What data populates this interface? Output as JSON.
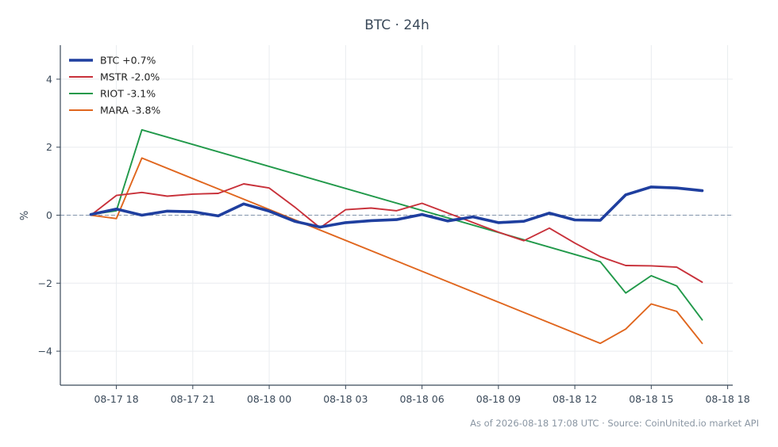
{
  "chart_data": {
    "type": "line",
    "title": "BTC · 24h",
    "xlabel": "",
    "ylabel": "%",
    "x_ticks": [
      "08-17 18",
      "08-17 21",
      "08-18 00",
      "08-18 03",
      "08-18 06",
      "08-18 09",
      "08-18 12",
      "08-18 15",
      "08-18 18"
    ],
    "x_tick_hours": [
      18,
      21,
      24,
      27,
      30,
      33,
      36,
      39,
      42
    ],
    "xlim_hours": [
      15.8,
      42.2
    ],
    "ylim": [
      -5,
      5
    ],
    "y_ticks": [
      -4,
      -2,
      0,
      2,
      4
    ],
    "y_tick_labels": [
      "−4",
      "−2",
      "0",
      "2",
      "4"
    ],
    "grid": true,
    "zero_line": true,
    "legend_position": "top-left",
    "series": [
      {
        "name": "BTC +0.7%",
        "color": "#1f3f9f",
        "width": 3.6,
        "x": [
          17,
          18,
          19,
          20,
          21,
          22,
          23,
          24,
          25,
          26,
          27,
          28,
          29,
          30,
          31,
          32,
          33,
          34,
          35,
          36,
          37,
          38,
          39,
          40,
          41
        ],
        "y": [
          0.02,
          0.18,
          0.0,
          0.12,
          0.1,
          -0.02,
          0.33,
          0.12,
          -0.18,
          -0.35,
          -0.22,
          -0.16,
          -0.13,
          0.02,
          -0.17,
          -0.05,
          -0.22,
          -0.18,
          0.06,
          -0.14,
          -0.15,
          0.6,
          0.83,
          0.8,
          0.72
        ]
      },
      {
        "name": "MSTR -2.0%",
        "color": "#c8313a",
        "width": 1.9,
        "x": [
          17,
          18,
          19,
          20,
          21,
          22,
          23,
          24,
          25,
          26,
          27,
          28,
          29,
          30,
          33,
          34,
          35,
          36,
          37,
          38,
          39,
          40,
          41
        ],
        "y": [
          0.0,
          0.58,
          0.67,
          0.56,
          0.62,
          0.64,
          0.92,
          0.8,
          0.24,
          -0.37,
          0.16,
          0.21,
          0.13,
          0.35,
          -0.5,
          -0.75,
          -0.38,
          -0.82,
          -1.22,
          -1.48,
          -1.49,
          -1.53,
          -1.97
        ]
      },
      {
        "name": "RIOT -3.1%",
        "color": "#21994a",
        "width": 1.9,
        "x": [
          17,
          18,
          19,
          37,
          38,
          39,
          40,
          41
        ],
        "y": [
          0.02,
          0.13,
          2.51,
          -1.37,
          -2.29,
          -1.78,
          -2.08,
          -3.08
        ]
      },
      {
        "name": "MARA -3.8%",
        "color": "#e0661e",
        "width": 1.9,
        "x": [
          17,
          18,
          19,
          37,
          38,
          39,
          40,
          41
        ],
        "y": [
          0.0,
          -0.1,
          1.68,
          -3.77,
          -3.35,
          -2.61,
          -2.83,
          -3.77
        ]
      }
    ]
  },
  "footer": "As of 2026-08-18 17:08 UTC · Source: CoinUnited.io market API"
}
